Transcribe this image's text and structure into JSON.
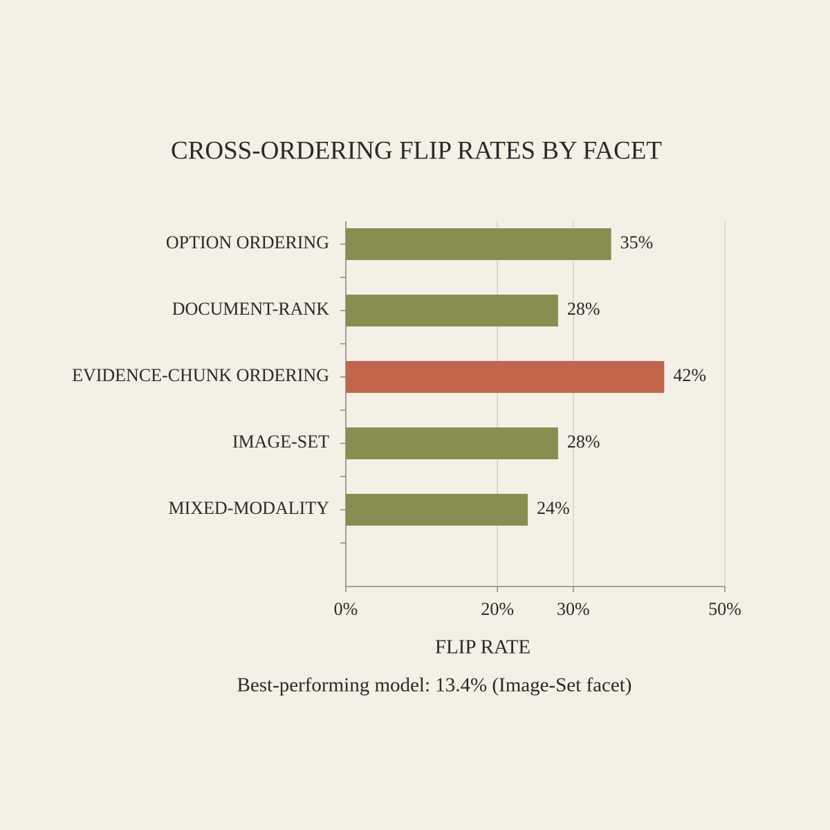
{
  "chart_data": {
    "type": "hbar",
    "title": "CROSS-ORDERING FLIP RATES BY FACET",
    "categories": [
      "OPTION ORDERING",
      "DOCUMENT-RANK",
      "EVIDENCE-CHUNK ORDERING",
      "IMAGE-SET",
      "MIXED-MODALITY"
    ],
    "values": [
      35,
      28,
      42,
      28,
      24
    ],
    "value_labels": [
      "35%",
      "28%",
      "42%",
      "28%",
      "24%"
    ],
    "colors": [
      "#8a8d50",
      "#8a8d50",
      "#c1664b",
      "#8a8d50",
      "#8a8d50"
    ],
    "xlim": [
      0,
      50
    ],
    "xticks": [
      {
        "value": 0,
        "label": "0%"
      },
      {
        "value": 20,
        "label": "20%"
      },
      {
        "value": 30,
        "label": "30%"
      },
      {
        "value": 50,
        "label": "50%"
      }
    ],
    "x_label": "FLIP RATE",
    "annotation": "Best-performing model: 13.4% (Image-Set facet)",
    "grid": true
  }
}
